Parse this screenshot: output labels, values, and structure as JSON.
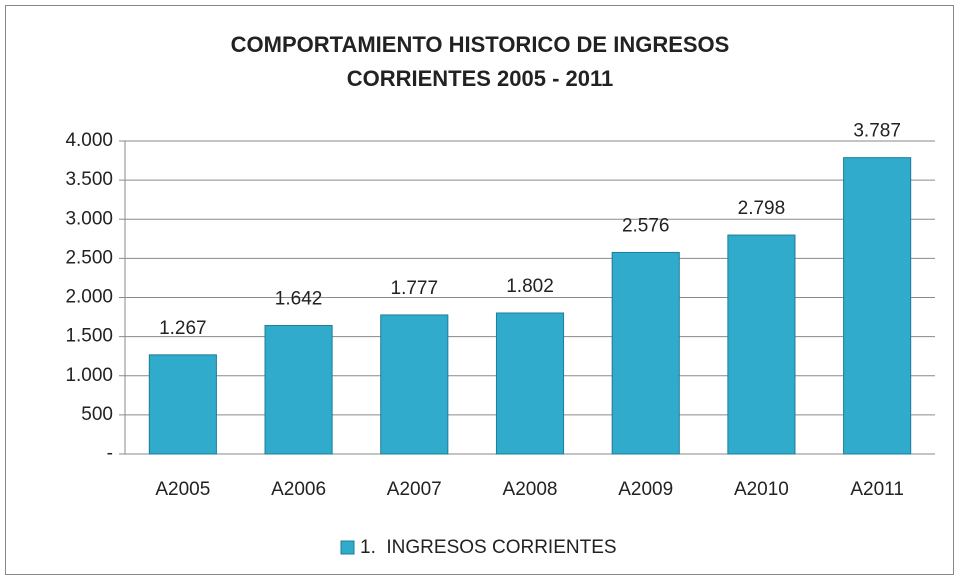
{
  "chart_data": {
    "type": "bar",
    "title": [
      "COMPORTAMIENTO HISTORICO DE INGRESOS",
      "CORRIENTES 2005 - 2011"
    ],
    "categories": [
      "A2005",
      "A2006",
      "A2007",
      "A2008",
      "A2009",
      "A2010",
      "A2011"
    ],
    "series": [
      {
        "name": "1.  INGRESOS CORRIENTES",
        "color": "#31abcb",
        "values": [
          1267,
          1642,
          1777,
          1802,
          2576,
          2798,
          3787
        ],
        "value_labels": [
          "1.267",
          "1.642",
          "1.777",
          "1.802",
          "2.576",
          "2.798",
          "3.787"
        ]
      }
    ],
    "ylim": [
      0,
      4000
    ],
    "yticks": [
      {
        "value": 0,
        "label": "-"
      },
      500,
      {
        "value": 1000,
        "label": "1.000"
      },
      {
        "value": 1500,
        "label": "1.500"
      },
      {
        "value": 2000,
        "label": "2.000"
      },
      {
        "value": 2500,
        "label": "2.500"
      },
      {
        "value": 3000,
        "label": "3.000"
      },
      {
        "value": 3500,
        "label": "3.500"
      },
      {
        "value": 4000,
        "label": "4.000"
      }
    ],
    "grid": true,
    "legend": "bottom"
  }
}
